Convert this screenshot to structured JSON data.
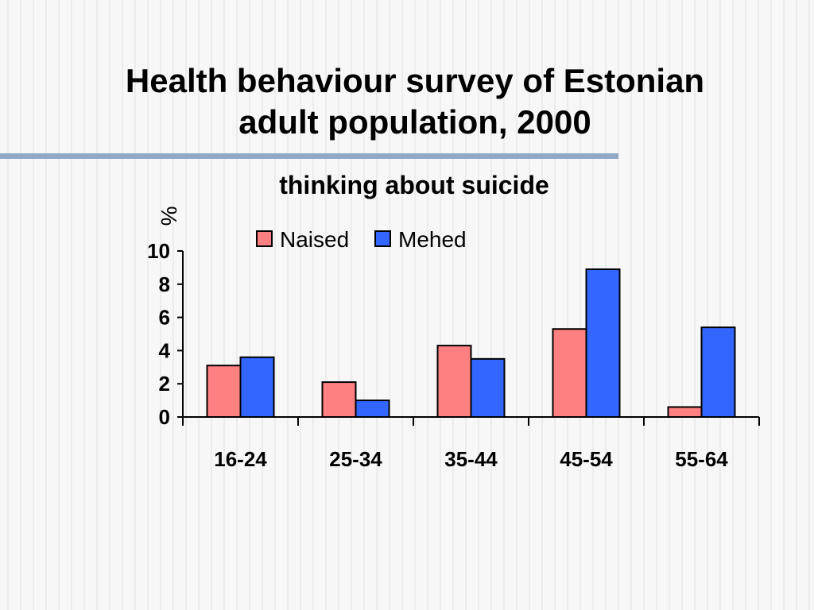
{
  "slide": {
    "title_line1": "Health behaviour survey of Estonian",
    "title_line2": "adult population, 2000"
  },
  "colors": {
    "rule": "#8fa9c6",
    "naised": "#ff8080",
    "mehed": "#3366ff"
  },
  "chart_data": {
    "type": "bar",
    "title": "thinking about suicide",
    "xlabel": "",
    "ylabel": "%",
    "categories": [
      "16-24",
      "25-34",
      "35-44",
      "45-54",
      "55-64"
    ],
    "series": [
      {
        "name": "Naised",
        "color": "#ff8080",
        "values": [
          3.1,
          2.1,
          4.3,
          5.3,
          0.6
        ]
      },
      {
        "name": "Mehed",
        "color": "#3366ff",
        "values": [
          3.6,
          1.0,
          3.5,
          8.9,
          5.4
        ]
      }
    ],
    "ylim": [
      0,
      10
    ],
    "yticks": [
      "0",
      "2",
      "4",
      "6",
      "8",
      "10"
    ],
    "legend_position": "top",
    "grid": false
  }
}
